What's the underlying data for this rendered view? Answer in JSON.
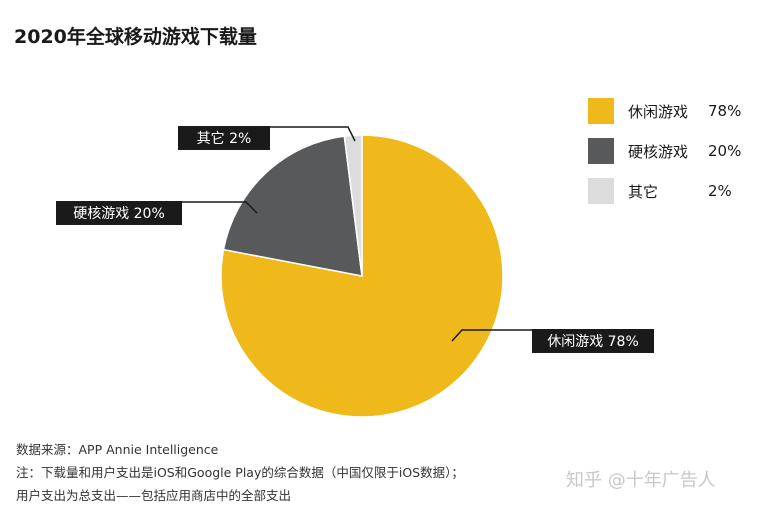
{
  "title": "2020年全球移动游戏下载量",
  "chart_data": {
    "type": "pie",
    "title": "2020年全球移动游戏下载量",
    "categories": [
      "休闲游戏",
      "硬核游戏",
      "其它"
    ],
    "values": [
      78,
      20,
      2
    ],
    "unit": "%",
    "colors": [
      "#efb91c",
      "#58595b",
      "#dcdcdc"
    ],
    "labels": [
      "休闲游戏 78%",
      "硬核游戏 20%",
      "其它 2%"
    ],
    "legend_position": "right"
  },
  "legend": [
    {
      "name": "休闲游戏",
      "value": "78%",
      "color": "#efb91c"
    },
    {
      "name": "硬核游戏",
      "value": "20%",
      "color": "#58595b"
    },
    {
      "name": "其它",
      "value": "2%",
      "color": "#dcdcdc"
    }
  ],
  "footer": {
    "source": "数据来源：APP Annie Intelligence",
    "note1": "注：下载量和用户支出是iOS和Google Play的综合数据（中国仅限于iOS数据）；",
    "note2": "用户支出为总支出——包括应用商店中的全部支出"
  },
  "watermark": "知乎 @十年广告人"
}
